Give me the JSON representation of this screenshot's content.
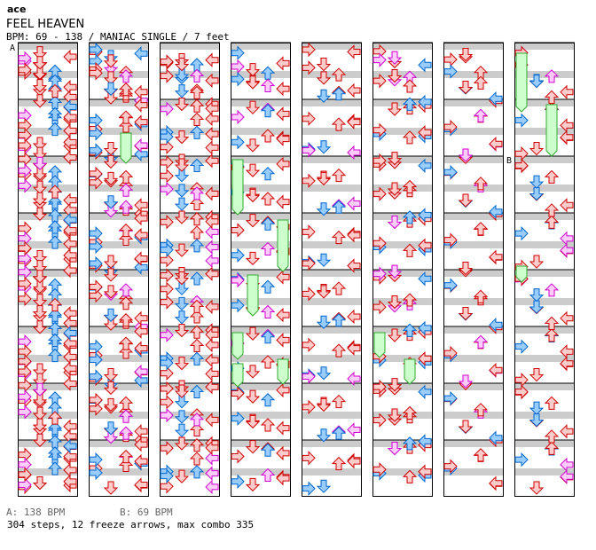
{
  "header": {
    "artist": "ace",
    "title": "FEEL HEAVEN",
    "info": "BPM: 69 - 138 / MANIAC SINGLE / 7 feet"
  },
  "footer": {
    "bpm_a": "A: 138 BPM",
    "bpm_b": "B: 69 BPM",
    "summary": "304 steps, 12 freeze arrows, max combo 335"
  },
  "markers": {
    "a": "A",
    "b": "B"
  },
  "colors": {
    "band_gray": "#cccccc",
    "arrow_red": "#ffcccc",
    "arrow_red_stroke": "#cc0000",
    "arrow_blue": "#99ccff",
    "arrow_blue_stroke": "#0066cc",
    "arrow_pink": "#ffccff",
    "arrow_pink_stroke": "#cc00cc",
    "freeze_fill": "#ccffcc",
    "freeze_stroke": "#33aa33"
  },
  "chart_data": {
    "type": "stepchart",
    "lanes": [
      "left",
      "down",
      "up",
      "right"
    ],
    "columns": 8,
    "measures_per_column": 8,
    "total_steps": 304,
    "freeze_arrows": 12,
    "max_combo": 335,
    "bpm_changes": [
      {
        "label": "A",
        "bpm": 138
      },
      {
        "label": "B",
        "bpm": 69
      }
    ],
    "notes": [
      [
        [
          0,
          0.1,
          1
        ],
        [
          0,
          0.3,
          2
        ],
        [
          0,
          0.25,
          3
        ],
        [
          0,
          0.35,
          0
        ],
        [
          0,
          0.45,
          1
        ],
        [
          0,
          0.6,
          2
        ],
        [
          0,
          0.55,
          3
        ],
        [
          0,
          0.7,
          0
        ],
        [
          0,
          0.8,
          1
        ],
        [
          0,
          0.85,
          3
        ]
      ],
      [
        [
          1,
          0.1,
          2
        ],
        [
          1,
          0.25,
          1
        ],
        [
          1,
          0.4,
          3
        ],
        [
          1,
          0.35,
          0
        ],
        [
          1,
          0.6,
          0
        ],
        [
          1,
          0.75,
          2
        ],
        [
          1,
          0.8,
          3
        ],
        [
          1,
          0.9,
          1
        ]
      ],
      [
        [
          2,
          0.05,
          3
        ],
        [
          2,
          0.2,
          2
        ],
        [
          2,
          0.4,
          0
        ],
        [
          2,
          0.55,
          1
        ],
        [
          2,
          0.65,
          2
        ],
        [
          2,
          0.8,
          0
        ],
        [
          2,
          0.9,
          3
        ]
      ],
      [
        [
          3,
          0.1,
          0
        ],
        [
          3,
          0.3,
          3
        ],
        [
          3,
          0.5,
          2
        ],
        [
          3,
          0.7,
          1
        ],
        [
          3,
          0.9,
          0
        ]
      ],
      [
        [
          4,
          0.15,
          1
        ],
        [
          4,
          0.35,
          3
        ],
        [
          4,
          0.55,
          0
        ],
        [
          4,
          0.75,
          2
        ]
      ],
      [
        [
          5,
          0.05,
          0
        ],
        [
          5,
          0.25,
          2
        ],
        [
          5,
          0.5,
          1
        ],
        [
          5,
          0.7,
          3
        ],
        [
          5,
          0.95,
          0
        ]
      ],
      [
        [
          6,
          0.1,
          2
        ],
        [
          6,
          0.3,
          0
        ],
        [
          6,
          0.6,
          3
        ],
        [
          6,
          0.85,
          1
        ]
      ],
      [
        [
          7,
          0.1,
          0
        ],
        [
          7,
          0.4,
          3
        ],
        [
          7,
          0.65,
          1
        ],
        [
          7,
          0.85,
          2
        ]
      ]
    ]
  }
}
